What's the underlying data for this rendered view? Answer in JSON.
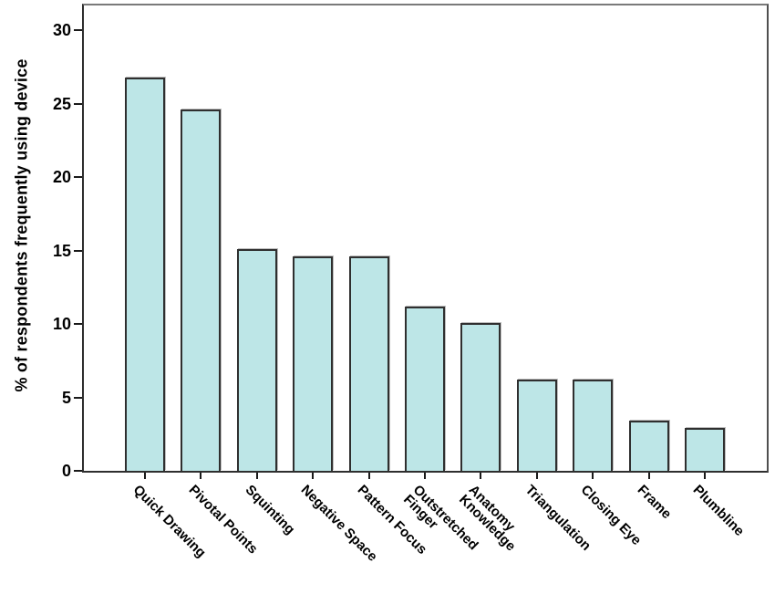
{
  "chart_data": {
    "type": "bar",
    "ylabel": "% of respondents frequently using device",
    "xlabel": "",
    "ylim": [
      0,
      31.7
    ],
    "yticks": [
      0,
      5,
      10,
      15,
      20,
      25,
      30
    ],
    "grid": false,
    "legend": "none",
    "category_label_rotation_deg": 45,
    "categories": [
      "Quick Drawing",
      "Pivotal Points",
      "Squinting",
      "Negative Space",
      "Pattern Focus",
      "Outstretched Finger",
      "Anatomy Knowledge",
      "Triangulation",
      "Closing Eye",
      "Frame",
      "Plumbline"
    ],
    "category_label_lines": [
      [
        "Quick Drawing"
      ],
      [
        "Pivotal Points"
      ],
      [
        "Squinting"
      ],
      [
        "Negative Space"
      ],
      [
        "Pattern Focus"
      ],
      [
        "Outstretched",
        "Finger"
      ],
      [
        "Anatomy",
        "Knowledge"
      ],
      [
        "Triangulation"
      ],
      [
        "Closing Eye"
      ],
      [
        "Frame"
      ],
      [
        "Plumbline"
      ]
    ],
    "values": [
      26.8,
      24.6,
      15.1,
      14.6,
      14.6,
      11.2,
      10.1,
      6.2,
      6.2,
      3.4,
      2.9
    ],
    "colors": {
      "bar_fill": "#bde6e7",
      "bar_border": "#2f2f2f",
      "axis_line": "#2e2e2e",
      "text": "#000000",
      "background": "#ffffff"
    }
  }
}
